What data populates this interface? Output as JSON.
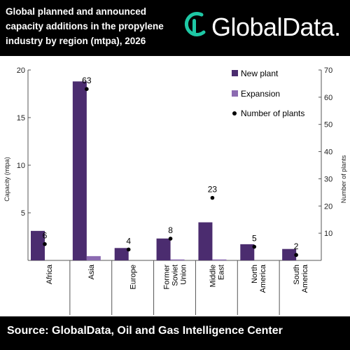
{
  "header": {
    "title": "Global planned and announced capacity additions in the propylene industry by region (mtpa), 2026",
    "logo_text": "GlobalData.",
    "logo_icon": "globaldata-logo-icon"
  },
  "footer": {
    "source": "Source: GlobalData, Oil and Gas Intelligence Center"
  },
  "colors": {
    "header_bg": "#000000",
    "logo_accent": "#1ec8a5",
    "new_plant": "#4b2c6f",
    "expansion": "#8c6bb1",
    "marker": "#000000"
  },
  "chart_data": {
    "type": "bar",
    "categories": [
      [
        "Africa"
      ],
      [
        "Asia"
      ],
      [
        "Europe"
      ],
      [
        "Former",
        "Soviet",
        "Union"
      ],
      [
        "Middle",
        "East"
      ],
      [
        "North",
        "America"
      ],
      [
        "South",
        "America"
      ]
    ],
    "series": [
      {
        "name": "New plant",
        "kind": "bar",
        "axis": "left",
        "values": [
          3.1,
          18.8,
          1.3,
          2.3,
          4.0,
          1.7,
          1.2
        ]
      },
      {
        "name": "Expansion",
        "kind": "bar",
        "axis": "left",
        "values": [
          0,
          0.45,
          0,
          0.1,
          0.1,
          0,
          0
        ]
      },
      {
        "name": "Number of plants",
        "kind": "point",
        "axis": "right",
        "values": [
          6,
          63,
          4,
          8,
          23,
          5,
          2
        ],
        "labels": [
          "6",
          "63",
          "4",
          "8",
          "23",
          "5",
          "2"
        ]
      }
    ],
    "ylabel": "Capacity (mtpa)",
    "y2label": "Number of plants",
    "ylim": [
      0,
      20
    ],
    "y2lim": [
      0,
      70
    ],
    "yticks": [
      "5",
      "10",
      "15",
      "20"
    ],
    "y2ticks": [
      "10",
      "20",
      "30",
      "40",
      "50",
      "60",
      "70"
    ],
    "legend": [
      "New plant",
      "Expansion",
      "Number of plants"
    ],
    "legend_position": "top-right",
    "grid": false
  }
}
